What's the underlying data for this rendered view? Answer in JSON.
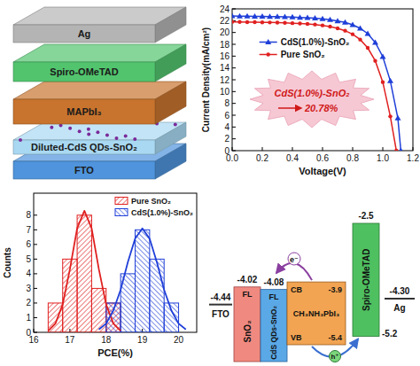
{
  "device": {
    "layers": [
      {
        "label": "Ag",
        "color": "#b4b4b4"
      },
      {
        "label": "Spiro-OMeTAD",
        "color": "#52c46e"
      },
      {
        "label": "MAPbI₃",
        "color": "#c8742e"
      },
      {
        "label": "Diluted-CdS QDs-SnO₂",
        "color": "#a9d9f2"
      },
      {
        "label": "FTO",
        "color": "#4f94dc"
      }
    ]
  },
  "chart_data": [
    {
      "type": "line",
      "xlabel": "Voltage(V)",
      "ylabel": "Current Density(mA/cm²)",
      "xlim": [
        0,
        1.2
      ],
      "ylim": [
        0,
        24
      ],
      "xticks": [
        {
          "value": 0,
          "label": "0.0"
        },
        0.2,
        0.4,
        0.6,
        0.8,
        {
          "value": 1,
          "label": "1.0"
        },
        1.2
      ],
      "yticks": [
        0,
        2,
        4,
        6,
        8,
        10,
        12,
        14,
        16,
        18,
        20,
        22,
        24
      ],
      "legend": "top",
      "series": [
        {
          "name": "CdS(1.0%)-SnO₂",
          "color": "#1f3fd8",
          "marker": "triangle",
          "x": [
            0,
            0.05,
            0.1,
            0.15,
            0.2,
            0.25,
            0.3,
            0.35,
            0.4,
            0.45,
            0.5,
            0.55,
            0.6,
            0.65,
            0.7,
            0.75,
            0.8,
            0.85,
            0.9,
            0.95,
            1,
            1.05,
            1.1,
            1.12
          ],
          "values": [
            22.8,
            22.78,
            22.76,
            22.74,
            22.72,
            22.7,
            22.68,
            22.65,
            22.6,
            22.55,
            22.5,
            22.42,
            22.3,
            22.15,
            21.95,
            21.7,
            21.3,
            20.7,
            19.8,
            18.3,
            15.9,
            11.8,
            5.5,
            0
          ]
        },
        {
          "name": "Pure SnO₂",
          "color": "#e02020",
          "marker": "circle",
          "x": [
            0,
            0.05,
            0.1,
            0.15,
            0.2,
            0.25,
            0.3,
            0.35,
            0.4,
            0.45,
            0.5,
            0.55,
            0.6,
            0.65,
            0.7,
            0.75,
            0.8,
            0.85,
            0.9,
            0.95,
            1,
            1.05,
            1.09
          ],
          "values": [
            21.8,
            21.78,
            21.76,
            21.74,
            21.72,
            21.7,
            21.67,
            21.63,
            21.58,
            21.52,
            21.45,
            21.35,
            21.2,
            21.0,
            20.7,
            20.3,
            19.7,
            18.8,
            17.4,
            15.2,
            11.6,
            5.8,
            0
          ]
        }
      ],
      "annotation": {
        "text": "CdS(1.0%)-SnO₂",
        "value": 20.78,
        "label": "20.78%"
      }
    },
    {
      "type": "histogram",
      "xlabel": "PCE(%)",
      "ylabel": "Counts",
      "xlim": [
        16,
        20.5
      ],
      "ylim": [
        0,
        9.5
      ],
      "xticks": [
        16,
        17,
        18,
        19,
        20
      ],
      "yticks": [
        0,
        1,
        2,
        3,
        4,
        5,
        6,
        7,
        8
      ],
      "legend": "upper right",
      "series": [
        {
          "name": "Pure SnO₂",
          "color": "#e02020",
          "bins": [
            16.4,
            16.8,
            17.2,
            17.6,
            18.0,
            18.4
          ],
          "values": [
            2,
            5,
            8,
            3,
            2
          ],
          "fit": {
            "x": [
              16.4,
              16.6,
              16.8,
              17.0,
              17.2,
              17.4,
              17.6,
              17.8,
              18.0,
              18.2,
              18.4
            ],
            "values": [
              0.1,
              0.6,
              1.9,
              4.3,
              7.1,
              8.3,
              7.1,
              4.3,
              1.9,
              0.6,
              0.1
            ]
          }
        },
        {
          "name": "CdS(1.0%)-SnO₂",
          "color": "#1f3fd8",
          "bins": [
            18.0,
            18.4,
            18.8,
            19.2,
            19.6,
            20.0
          ],
          "values": [
            2,
            4,
            7,
            5,
            2
          ],
          "fit": {
            "x": [
              17.8,
              18.0,
              18.2,
              18.4,
              18.6,
              18.8,
              19.0,
              19.2,
              19.4,
              19.6,
              19.8,
              20.0,
              20.2
            ],
            "values": [
              0.2,
              0.6,
              1.5,
              2.9,
              4.8,
              6.4,
              7.1,
              6.4,
              4.8,
              2.9,
              1.5,
              0.6,
              0.2
            ]
          }
        }
      ]
    }
  ],
  "energy_diagram": {
    "fto": {
      "label": "FTO",
      "level": {
        "value": -4.44,
        "label": "-4.44"
      }
    },
    "sno2": {
      "label": "SnO₂",
      "fermi": "FL",
      "level": {
        "value": -4.02,
        "label": "-4.02"
      }
    },
    "cds_sno2": {
      "label": "CdS QDs-SnO₂",
      "fermi": "FL",
      "level": {
        "value": -4.08,
        "label": "-4.08"
      }
    },
    "perovskite": {
      "label": "CH₃NH₃PbI₃",
      "cb": {
        "name": "CB",
        "value": -3.9,
        "label": "-3.9"
      },
      "vb": {
        "name": "VB",
        "value": -5.4,
        "label": "-5.4"
      }
    },
    "spiro": {
      "label": "Spiro-OMeTAD",
      "lumo": {
        "value": -2.5,
        "label": "-2.5"
      },
      "homo": {
        "value": -5.2,
        "label": "-5.2"
      }
    },
    "ag": {
      "label": "Ag",
      "level": {
        "value": -4.3,
        "label": "-4.30"
      }
    },
    "electron": "e⁻",
    "hole": "h⁺"
  }
}
